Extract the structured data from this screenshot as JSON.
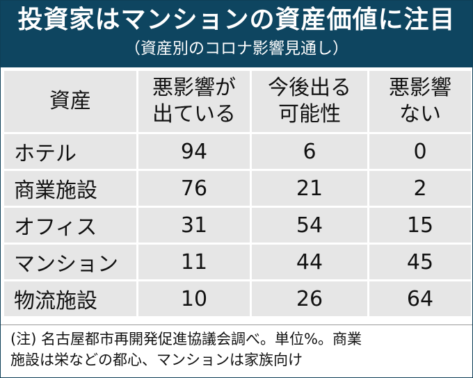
{
  "header": {
    "title": "投資家はマンションの資産価値に注目",
    "subtitle": "（資産別のコロナ影響見通し）"
  },
  "table": {
    "columns": [
      {
        "line1": "資産",
        "line2": ""
      },
      {
        "line1": "悪影響が",
        "line2": "出ている"
      },
      {
        "line1": "今後出る",
        "line2": "可能性"
      },
      {
        "line1": "悪影響",
        "line2": "ない"
      }
    ],
    "rows": [
      {
        "name": "ホテル",
        "bad_now": "94",
        "possible": "6",
        "none": "0"
      },
      {
        "name": "商業施設",
        "bad_now": "76",
        "possible": "21",
        "none": "2"
      },
      {
        "name": "オフィス",
        "bad_now": "31",
        "possible": "54",
        "none": "15"
      },
      {
        "name": "マンション",
        "bad_now": "11",
        "possible": "44",
        "none": "45"
      },
      {
        "name": "物流施設",
        "bad_now": "10",
        "possible": "26",
        "none": "64"
      }
    ]
  },
  "note": {
    "line1": "(注) 名古屋都市再開発促進協議会調べ。単位%。商業",
    "line2": "施設は栄などの都心、マンションは家族向け"
  }
}
